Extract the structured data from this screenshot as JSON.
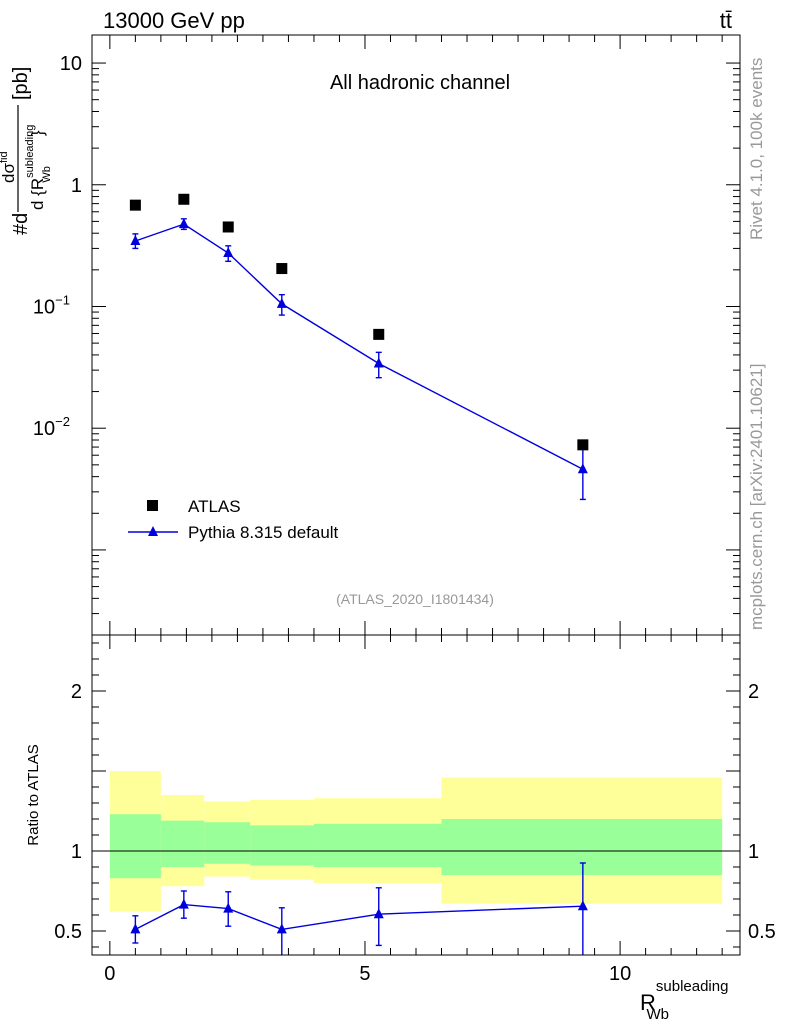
{
  "header": {
    "energy_label": "13000 GeV pp",
    "process_label": "tt̄"
  },
  "side_labels": {
    "rivet": "Rivet 4.1.0,  100k events",
    "mcplots": "mcplots.cern.ch [arXiv:2401.10621]"
  },
  "colors": {
    "mc": "#0000dd",
    "data": "#000000",
    "band_outer": "#ffff99",
    "band_inner": "#99ff99"
  },
  "chart_data": [
    {
      "type": "scatter",
      "panel": "main",
      "title": "All hadronic channel",
      "ylabel_parts": {
        "num": "dσ",
        "num_sup": "fid",
        "prefix": "#d",
        "den": "d {R",
        "den_sub": "Wb",
        "den_sup": "subleading",
        "den_close": "}",
        "unit": "[pb]"
      },
      "yscale": "log",
      "ylim": [
        0.0002,
        17
      ],
      "xlim": [
        -0.35,
        12.35
      ],
      "ytick_labels": [
        {
          "value": 10,
          "base": "10",
          "exp": ""
        },
        {
          "value": 1,
          "base": "1",
          "exp": ""
        },
        {
          "value": 0.1,
          "base": "10",
          "exp": "−1"
        },
        {
          "value": 0.01,
          "base": "10",
          "exp": "−2"
        }
      ],
      "watermark": "(ATLAS_2020_I1801434)",
      "legend_position": "bottom-left",
      "series": [
        {
          "name": "ATLAS",
          "marker": "square",
          "x": [
            0.5,
            1.45,
            2.32,
            3.37,
            5.27,
            9.27
          ],
          "y": [
            0.68,
            0.76,
            0.45,
            0.205,
            0.059,
            0.0073
          ]
        },
        {
          "name": "Pythia 8.315 default",
          "marker": "triangle",
          "x": [
            0.5,
            1.45,
            2.32,
            3.37,
            5.27,
            9.27
          ],
          "y": [
            0.345,
            0.475,
            0.275,
            0.105,
            0.034,
            0.0046
          ],
          "err_lo": [
            0.045,
            0.045,
            0.04,
            0.02,
            0.008,
            0.002
          ],
          "err_hi": [
            0.05,
            0.05,
            0.04,
            0.02,
            0.008,
            0.0024
          ]
        }
      ]
    },
    {
      "type": "line",
      "panel": "ratio",
      "ylabel": "Ratio to ATLAS",
      "xlabel": "R",
      "xlabel_sub": "Wb",
      "xlabel_sup": "subleading",
      "ylim": [
        0.35,
        2.35
      ],
      "xlim": [
        -0.35,
        12.35
      ],
      "xtick_labels": [
        0,
        5,
        10
      ],
      "ytick_labels": [
        0.5,
        1,
        2
      ],
      "reference": 1,
      "bands": {
        "bin_edges": [
          0.0,
          1.0,
          1.85,
          2.75,
          4.0,
          6.5,
          12.0
        ],
        "outer_lo": [
          0.62,
          0.78,
          0.84,
          0.82,
          0.8,
          0.67
        ],
        "outer_hi": [
          1.5,
          1.35,
          1.31,
          1.32,
          1.33,
          1.46
        ],
        "inner_lo": [
          0.83,
          0.9,
          0.92,
          0.91,
          0.9,
          0.85
        ],
        "inner_hi": [
          1.23,
          1.19,
          1.18,
          1.16,
          1.17,
          1.2
        ]
      },
      "series": [
        {
          "name": "Pythia 8.315 default",
          "x": [
            0.5,
            1.45,
            2.32,
            3.37,
            5.27,
            9.27
          ],
          "y": [
            0.51,
            0.665,
            0.64,
            0.51,
            0.605,
            0.655
          ],
          "err_lo": [
            0.085,
            0.085,
            0.11,
            0.16,
            0.195,
            0.32
          ],
          "err_hi": [
            0.085,
            0.085,
            0.105,
            0.135,
            0.165,
            0.27
          ]
        }
      ]
    }
  ]
}
